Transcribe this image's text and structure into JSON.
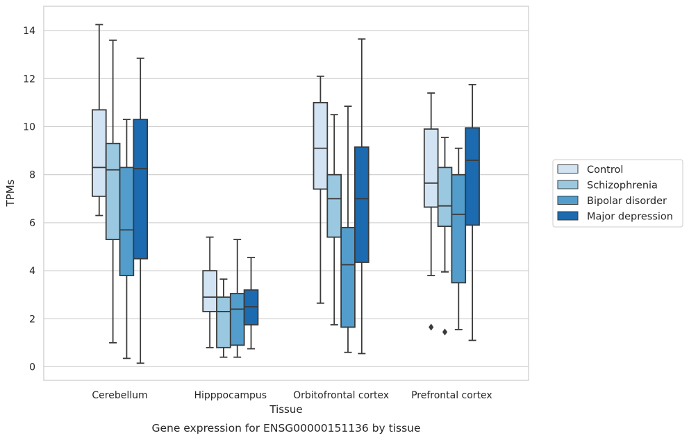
{
  "caption": "Gene expression for ENSG00000151136 by tissue",
  "chart_data": {
    "type": "boxplot",
    "xlabel": "Tissue",
    "ylabel": "TPMs",
    "ylim": [
      -0.6,
      15.1
    ],
    "yticks": [
      0,
      2,
      4,
      6,
      8,
      10,
      12,
      14
    ],
    "grid": "horizontal",
    "legend_position": "right",
    "categories": [
      "Cerebellum",
      "Hipppocampus",
      "Orbitofrontal cortex",
      "Prefrontal cortex"
    ],
    "series": [
      {
        "name": "Control",
        "color": "#d2e3f3",
        "boxes": [
          {
            "whislo": 6.3,
            "q1": 7.1,
            "med": 8.3,
            "q3": 10.7,
            "whishi": 14.25,
            "fliers": []
          },
          {
            "whislo": 0.8,
            "q1": 2.3,
            "med": 2.9,
            "q3": 4.0,
            "whishi": 5.4,
            "fliers": []
          },
          {
            "whislo": 2.65,
            "q1": 7.4,
            "med": 9.1,
            "q3": 11.0,
            "whishi": 12.1,
            "fliers": []
          },
          {
            "whislo": 3.8,
            "q1": 6.65,
            "med": 7.65,
            "q3": 9.9,
            "whishi": 11.4,
            "fliers": [
              1.65
            ]
          }
        ]
      },
      {
        "name": "Schizophrenia",
        "color": "#9ac8e0",
        "boxes": [
          {
            "whislo": 1.0,
            "q1": 5.3,
            "med": 8.2,
            "q3": 9.3,
            "whishi": 13.6,
            "fliers": []
          },
          {
            "whislo": 0.4,
            "q1": 0.8,
            "med": 2.3,
            "q3": 2.9,
            "whishi": 3.65,
            "fliers": []
          },
          {
            "whislo": 1.75,
            "q1": 5.4,
            "med": 7.0,
            "q3": 8.0,
            "whishi": 10.5,
            "fliers": []
          },
          {
            "whislo": 3.95,
            "q1": 5.85,
            "med": 6.7,
            "q3": 8.3,
            "whishi": 9.55,
            "fliers": [
              1.45
            ]
          }
        ]
      },
      {
        "name": "Bipolar disorder",
        "color": "#529dcc",
        "boxes": [
          {
            "whislo": 0.35,
            "q1": 3.8,
            "med": 5.7,
            "q3": 8.3,
            "whishi": 10.3,
            "fliers": []
          },
          {
            "whislo": 0.4,
            "q1": 0.9,
            "med": 2.4,
            "q3": 3.05,
            "whishi": 5.3,
            "fliers": []
          },
          {
            "whislo": 0.6,
            "q1": 1.65,
            "med": 4.25,
            "q3": 5.8,
            "whishi": 10.85,
            "fliers": []
          },
          {
            "whislo": 1.55,
            "q1": 3.5,
            "med": 6.35,
            "q3": 8.0,
            "whishi": 9.1,
            "fliers": []
          }
        ]
      },
      {
        "name": "Major depression",
        "color": "#1c6aaf",
        "boxes": [
          {
            "whislo": 0.15,
            "q1": 4.5,
            "med": 8.25,
            "q3": 10.3,
            "whishi": 12.85,
            "fliers": []
          },
          {
            "whislo": 0.75,
            "q1": 1.75,
            "med": 2.5,
            "q3": 3.2,
            "whishi": 4.55,
            "fliers": []
          },
          {
            "whislo": 0.55,
            "q1": 4.35,
            "med": 7.0,
            "q3": 9.15,
            "whishi": 13.65,
            "fliers": []
          },
          {
            "whislo": 1.1,
            "q1": 5.9,
            "med": 8.6,
            "q3": 9.95,
            "whishi": 11.75,
            "fliers": []
          }
        ]
      }
    ]
  }
}
